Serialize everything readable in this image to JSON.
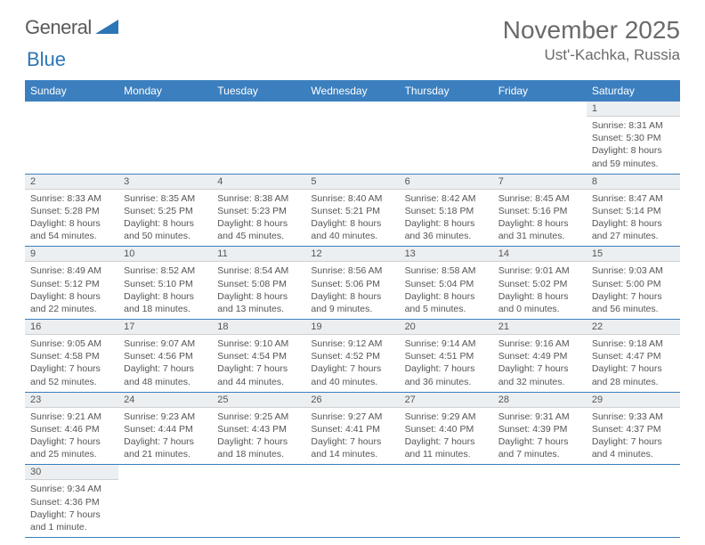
{
  "logo": {
    "part1": "General",
    "part2": "Blue"
  },
  "title": "November 2025",
  "location": "Ust'-Kachka, Russia",
  "colors": {
    "header_bg": "#3b7fbf",
    "header_fg": "#ffffff",
    "daynum_bg": "#eceff1",
    "text": "#555555",
    "rule": "#3b7fbf"
  },
  "weekdays": [
    "Sunday",
    "Monday",
    "Tuesday",
    "Wednesday",
    "Thursday",
    "Friday",
    "Saturday"
  ],
  "first_weekday_index": 6,
  "days": [
    {
      "n": 1,
      "sunrise": "8:31 AM",
      "sunset": "5:30 PM",
      "daylight": "8 hours and 59 minutes."
    },
    {
      "n": 2,
      "sunrise": "8:33 AM",
      "sunset": "5:28 PM",
      "daylight": "8 hours and 54 minutes."
    },
    {
      "n": 3,
      "sunrise": "8:35 AM",
      "sunset": "5:25 PM",
      "daylight": "8 hours and 50 minutes."
    },
    {
      "n": 4,
      "sunrise": "8:38 AM",
      "sunset": "5:23 PM",
      "daylight": "8 hours and 45 minutes."
    },
    {
      "n": 5,
      "sunrise": "8:40 AM",
      "sunset": "5:21 PM",
      "daylight": "8 hours and 40 minutes."
    },
    {
      "n": 6,
      "sunrise": "8:42 AM",
      "sunset": "5:18 PM",
      "daylight": "8 hours and 36 minutes."
    },
    {
      "n": 7,
      "sunrise": "8:45 AM",
      "sunset": "5:16 PM",
      "daylight": "8 hours and 31 minutes."
    },
    {
      "n": 8,
      "sunrise": "8:47 AM",
      "sunset": "5:14 PM",
      "daylight": "8 hours and 27 minutes."
    },
    {
      "n": 9,
      "sunrise": "8:49 AM",
      "sunset": "5:12 PM",
      "daylight": "8 hours and 22 minutes."
    },
    {
      "n": 10,
      "sunrise": "8:52 AM",
      "sunset": "5:10 PM",
      "daylight": "8 hours and 18 minutes."
    },
    {
      "n": 11,
      "sunrise": "8:54 AM",
      "sunset": "5:08 PM",
      "daylight": "8 hours and 13 minutes."
    },
    {
      "n": 12,
      "sunrise": "8:56 AM",
      "sunset": "5:06 PM",
      "daylight": "8 hours and 9 minutes."
    },
    {
      "n": 13,
      "sunrise": "8:58 AM",
      "sunset": "5:04 PM",
      "daylight": "8 hours and 5 minutes."
    },
    {
      "n": 14,
      "sunrise": "9:01 AM",
      "sunset": "5:02 PM",
      "daylight": "8 hours and 0 minutes."
    },
    {
      "n": 15,
      "sunrise": "9:03 AM",
      "sunset": "5:00 PM",
      "daylight": "7 hours and 56 minutes."
    },
    {
      "n": 16,
      "sunrise": "9:05 AM",
      "sunset": "4:58 PM",
      "daylight": "7 hours and 52 minutes."
    },
    {
      "n": 17,
      "sunrise": "9:07 AM",
      "sunset": "4:56 PM",
      "daylight": "7 hours and 48 minutes."
    },
    {
      "n": 18,
      "sunrise": "9:10 AM",
      "sunset": "4:54 PM",
      "daylight": "7 hours and 44 minutes."
    },
    {
      "n": 19,
      "sunrise": "9:12 AM",
      "sunset": "4:52 PM",
      "daylight": "7 hours and 40 minutes."
    },
    {
      "n": 20,
      "sunrise": "9:14 AM",
      "sunset": "4:51 PM",
      "daylight": "7 hours and 36 minutes."
    },
    {
      "n": 21,
      "sunrise": "9:16 AM",
      "sunset": "4:49 PM",
      "daylight": "7 hours and 32 minutes."
    },
    {
      "n": 22,
      "sunrise": "9:18 AM",
      "sunset": "4:47 PM",
      "daylight": "7 hours and 28 minutes."
    },
    {
      "n": 23,
      "sunrise": "9:21 AM",
      "sunset": "4:46 PM",
      "daylight": "7 hours and 25 minutes."
    },
    {
      "n": 24,
      "sunrise": "9:23 AM",
      "sunset": "4:44 PM",
      "daylight": "7 hours and 21 minutes."
    },
    {
      "n": 25,
      "sunrise": "9:25 AM",
      "sunset": "4:43 PM",
      "daylight": "7 hours and 18 minutes."
    },
    {
      "n": 26,
      "sunrise": "9:27 AM",
      "sunset": "4:41 PM",
      "daylight": "7 hours and 14 minutes."
    },
    {
      "n": 27,
      "sunrise": "9:29 AM",
      "sunset": "4:40 PM",
      "daylight": "7 hours and 11 minutes."
    },
    {
      "n": 28,
      "sunrise": "9:31 AM",
      "sunset": "4:39 PM",
      "daylight": "7 hours and 7 minutes."
    },
    {
      "n": 29,
      "sunrise": "9:33 AM",
      "sunset": "4:37 PM",
      "daylight": "7 hours and 4 minutes."
    },
    {
      "n": 30,
      "sunrise": "9:34 AM",
      "sunset": "4:36 PM",
      "daylight": "7 hours and 1 minute."
    }
  ],
  "labels": {
    "sunrise": "Sunrise:",
    "sunset": "Sunset:",
    "daylight": "Daylight:"
  }
}
